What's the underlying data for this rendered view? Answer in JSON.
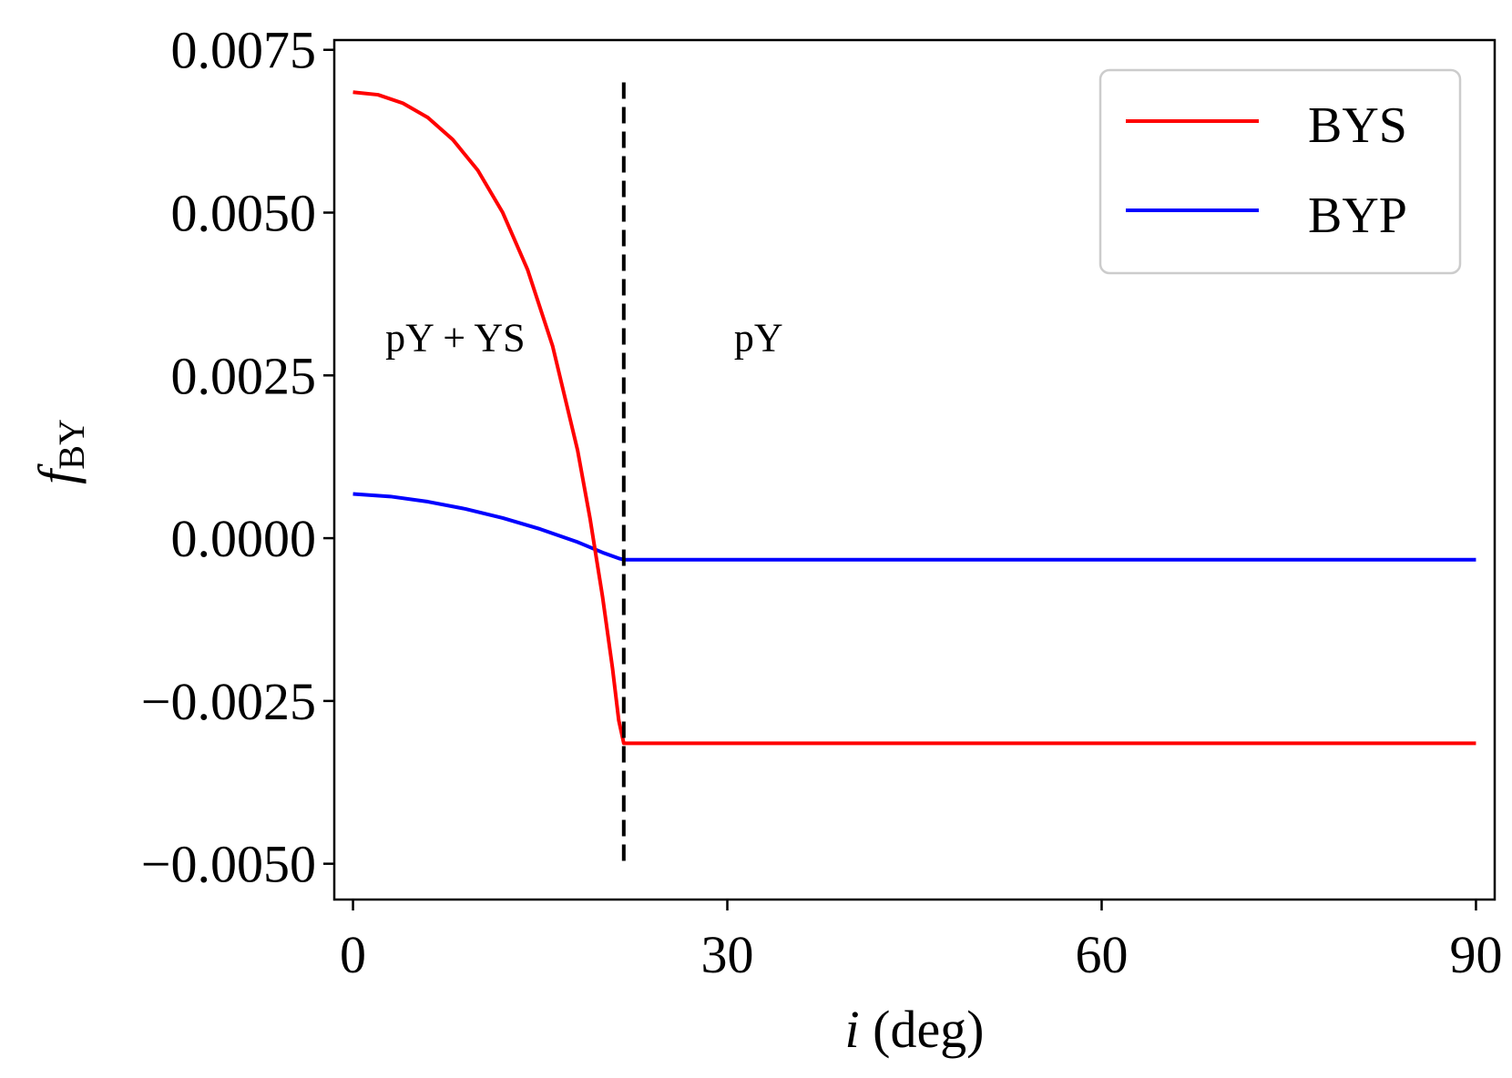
{
  "chart_data": {
    "type": "line",
    "xlabel": {
      "italic": "i",
      "rest": " (deg)"
    },
    "ylabel": {
      "base": "f",
      "sub": "BY"
    },
    "xlim": [
      -1.5,
      91.5
    ],
    "ylim": [
      -0.00555,
      0.00765
    ],
    "x_ticks": [
      0,
      30,
      60,
      90
    ],
    "x_tick_labels": [
      "0",
      "30",
      "60",
      "90"
    ],
    "y_ticks": [
      0.0075,
      0.005,
      0.0025,
      0.0,
      -0.0025,
      -0.005
    ],
    "y_tick_labels": [
      "0.0075",
      "0.0050",
      "0.0025",
      "0.0000",
      "−0.0025",
      "−0.0050"
    ],
    "grid": false,
    "legend_position": "top-right",
    "series": [
      {
        "name": "BYS",
        "color": "#ff0000",
        "x": [
          0,
          2,
          4,
          6,
          8,
          10,
          12,
          14,
          16,
          18,
          19,
          20,
          20.8,
          21.3,
          21.7,
          90
        ],
        "y": [
          0.00685,
          0.00681,
          0.00668,
          0.00646,
          0.00612,
          0.00565,
          0.005,
          0.00412,
          0.00295,
          0.00135,
          0.0003,
          -0.0009,
          -0.002,
          -0.0028,
          -0.00315,
          -0.00315
        ]
      },
      {
        "name": "BYP",
        "color": "#0000ff",
        "x": [
          0,
          3,
          6,
          9,
          12,
          15,
          18,
          20,
          21.3,
          21.7,
          90
        ],
        "y": [
          0.00068,
          0.00064,
          0.00056,
          0.00045,
          0.00031,
          0.00014,
          -6e-05,
          -0.00022,
          -0.00031,
          -0.00033,
          -0.00033
        ]
      }
    ],
    "vline": {
      "x": 21.7,
      "y_range": [
        -0.005,
        0.007
      ],
      "color": "#000000",
      "style": "dashed"
    },
    "annotations": [
      {
        "text": "pY + YS",
        "x": 8.2,
        "y": 0.0031
      },
      {
        "text": "pY",
        "x": 32.5,
        "y": 0.0031
      }
    ]
  }
}
